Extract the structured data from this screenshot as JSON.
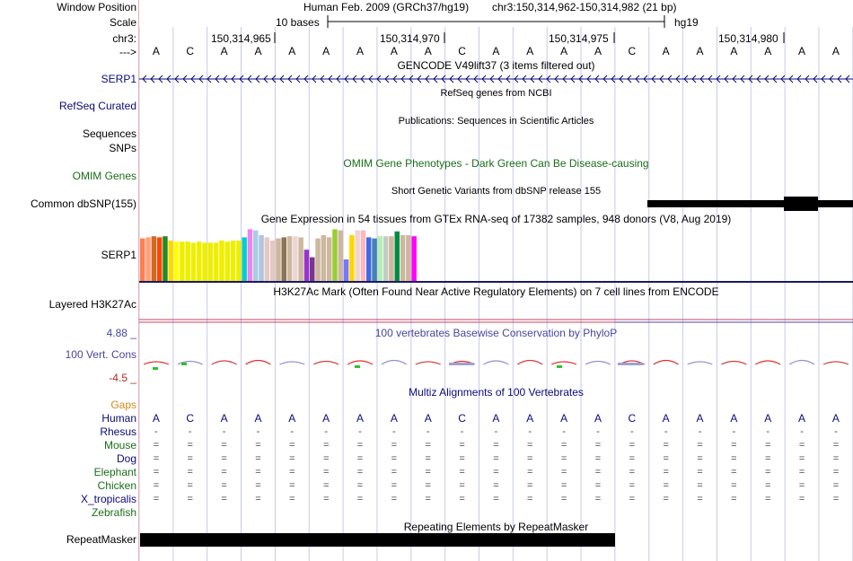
{
  "labels": {
    "window_position": "Window Position",
    "scale": "Scale",
    "chr": "chr3:",
    "arrow": "--->",
    "serp1_gene": "SERP1",
    "refseq": "RefSeq Curated",
    "sequences": "Sequences",
    "snps": "SNPs",
    "omim": "OMIM Genes",
    "common_dbsnp": "Common dbSNP(155)",
    "serp1_gtex": "SERP1",
    "h3k27ac": "Layered H3K27Ac",
    "phylop_max": "4.88 _",
    "vert_cons": "100 Vert. Cons",
    "phylop_min": "-4.5 _",
    "gaps": "Gaps",
    "repeatmasker": "RepeatMasker"
  },
  "header": {
    "assembly": "Human Feb. 2009 (GRCh37/hg19)",
    "position": "chr3:150,314,962-150,314,982 (21 bp)",
    "scale_text": "10 bases",
    "scale_db": "hg19",
    "ticks": [
      "150,314,965",
      "150,314,970",
      "150,314,975",
      "150,314,980"
    ]
  },
  "sequence": [
    "A",
    "C",
    "A",
    "A",
    "A",
    "A",
    "A",
    "A",
    "A",
    "C",
    "A",
    "A",
    "A",
    "A",
    "C",
    "A",
    "A",
    "A",
    "A",
    "A",
    "A"
  ],
  "tracks": {
    "gencode": "GENCODE V49lift37 (3 items filtered out)",
    "refseq": "RefSeq genes from NCBI",
    "publications": "Publications: Sequences in Scientific Articles",
    "omim": "OMIM Gene Phenotypes - Dark Green Can Be Disease-causing",
    "dbsnp": "Short Genetic Variants from dbSNP release 155",
    "gtex": "Gene Expression in 54 tissues from GTEx RNA-seq of 17382 samples, 948 donors (V8, Aug 2019)",
    "h3k27ac": "H3K27Ac Mark (Often Found Near Active Regulatory Elements) on 7 cell lines from ENCODE",
    "phylop": "100 vertebrates Basewise Conservation by PhyloP",
    "multiz": "Multiz Alignments of 100 Vertebrates",
    "repeatmasker": "Repeating Elements by RepeatMasker"
  },
  "species": [
    {
      "name": "Human",
      "color": "#0a0a78"
    },
    {
      "name": "Rhesus",
      "color": "#0a0a78"
    },
    {
      "name": "Mouse",
      "color": "#1a6e1a"
    },
    {
      "name": "Dog",
      "color": "#0a0a78"
    },
    {
      "name": "Elephant",
      "color": "#1a6e1a"
    },
    {
      "name": "Chicken",
      "color": "#1a6e1a"
    },
    {
      "name": "X_tropicalis",
      "color": "#0a0a78"
    },
    {
      "name": "Zebrafish",
      "color": "#1a6e1a"
    }
  ],
  "align_rows": [
    {
      "species": "Rhesus",
      "symbol": "-"
    },
    {
      "species": "Mouse",
      "symbol": "="
    },
    {
      "species": "Dog",
      "symbol": "="
    },
    {
      "species": "Elephant",
      "symbol": "="
    },
    {
      "species": "Chicken",
      "symbol": "="
    },
    {
      "species": "X_tropicalis",
      "symbol": "="
    }
  ],
  "colors": {
    "gene_blue": "#0a0a78",
    "omim_green": "#1a6e1a",
    "phylop_blue": "#4646a0",
    "gaps_orange": "#d28a1a",
    "phylop_red": "#b42828",
    "grid": "#c8c8f0"
  },
  "gtex_bars": [
    {
      "color": "#ff7f50",
      "value": 0.79
    },
    {
      "color": "#ffa07a",
      "value": 0.81
    },
    {
      "color": "#d2691e",
      "value": 0.83
    },
    {
      "color": "#ff4500",
      "value": 0.81
    },
    {
      "color": "#228b22",
      "value": 0.83
    },
    {
      "color": "#ffd700",
      "value": 0.75
    },
    {
      "color": "#ffff00",
      "value": 0.73
    },
    {
      "color": "#eeee00",
      "value": 0.73
    },
    {
      "color": "#eeee00",
      "value": 0.73
    },
    {
      "color": "#eeee00",
      "value": 0.71
    },
    {
      "color": "#eeee00",
      "value": 0.73
    },
    {
      "color": "#eeee00",
      "value": 0.71
    },
    {
      "color": "#eeee00",
      "value": 0.71
    },
    {
      "color": "#eeee00",
      "value": 0.71
    },
    {
      "color": "#eeee00",
      "value": 0.75
    },
    {
      "color": "#eeee00",
      "value": 0.73
    },
    {
      "color": "#eeee00",
      "value": 0.75
    },
    {
      "color": "#eeee00",
      "value": 0.75
    },
    {
      "color": "#00ced1",
      "value": 0.81
    },
    {
      "color": "#ee82ee",
      "value": 0.96
    },
    {
      "color": "#a6cee3",
      "value": 0.94
    },
    {
      "color": "#b0c4de",
      "value": 0.85
    },
    {
      "color": "#e5c9c0",
      "value": 0.81
    },
    {
      "color": "#e5c9c0",
      "value": 0.75
    },
    {
      "color": "#cdb79e",
      "value": 0.79
    },
    {
      "color": "#8b7355",
      "value": 0.81
    },
    {
      "color": "#cdb79e",
      "value": 0.83
    },
    {
      "color": "#eed5d2",
      "value": 0.83
    },
    {
      "color": "#cdb79e",
      "value": 0.81
    },
    {
      "color": "#9a32cd",
      "value": 0.58
    },
    {
      "color": "#7a378b",
      "value": 0.44
    },
    {
      "color": "#cdb79e",
      "value": 0.79
    },
    {
      "color": "#cdb79e",
      "value": 0.85
    },
    {
      "color": "#cdb79e",
      "value": 0.81
    },
    {
      "color": "#9acd32",
      "value": 0.96
    },
    {
      "color": "#cdb79e",
      "value": 0.94
    },
    {
      "color": "#7777ff",
      "value": 0.4
    },
    {
      "color": "#ffd700",
      "value": 0.85
    },
    {
      "color": "#eed5d2",
      "value": 0.94
    },
    {
      "color": "#ffb6c1",
      "value": 0.94
    },
    {
      "color": "#4169e1",
      "value": 0.81
    },
    {
      "color": "#4682b4",
      "value": 0.79
    },
    {
      "color": "#b4eeb4",
      "value": 0.83
    },
    {
      "color": "#c1cdc1",
      "value": 0.83
    },
    {
      "color": "#cdb79e",
      "value": 0.83
    },
    {
      "color": "#008b45",
      "value": 0.92
    },
    {
      "color": "#cdb79e",
      "value": 0.85
    },
    {
      "color": "#cdb79e",
      "value": 0.85
    },
    {
      "color": "#ff00ff",
      "value": 0.83
    }
  ]
}
